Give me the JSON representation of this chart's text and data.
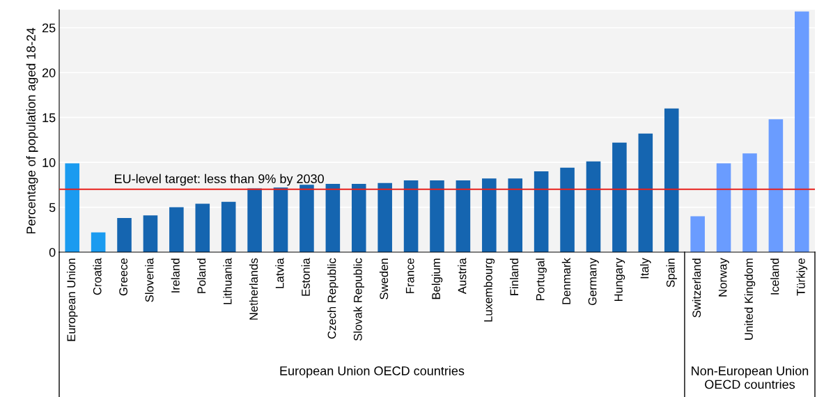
{
  "chart_data": {
    "type": "bar",
    "ylabel": "Percentage of population aged 18-24",
    "categories": [
      "European Union",
      "Croatia",
      "Greece",
      "Slovenia",
      "Ireland",
      "Poland",
      "Lithuania",
      "Netherlands",
      "Latvia",
      "Estonia",
      "Czech Republic",
      "Slovak Republic",
      "Sweden",
      "France",
      "Belgium",
      "Austria",
      "Luxembourg",
      "Finland",
      "Portugal",
      "Denmark",
      "Germany",
      "Hungary",
      "Italy",
      "Spain",
      "Switzerland",
      "Norway",
      "United Kingdom",
      "Iceland",
      "Türkiye"
    ],
    "values": [
      9.9,
      2.2,
      3.8,
      4.1,
      5.0,
      5.4,
      5.6,
      7.1,
      7.2,
      7.5,
      7.6,
      7.6,
      7.7,
      8.0,
      8.0,
      8.0,
      8.2,
      8.2,
      9.0,
      9.4,
      10.1,
      12.2,
      13.2,
      16.0,
      4.0,
      9.9,
      11.0,
      14.8,
      26.8
    ],
    "colors": [
      "#1a9bf0",
      "#1a9bf0",
      "#1565b0",
      "#1565b0",
      "#1565b0",
      "#1565b0",
      "#1565b0",
      "#1565b0",
      "#1565b0",
      "#1565b0",
      "#1565b0",
      "#1565b0",
      "#1565b0",
      "#1565b0",
      "#1565b0",
      "#1565b0",
      "#1565b0",
      "#1565b0",
      "#1565b0",
      "#1565b0",
      "#1565b0",
      "#1565b0",
      "#1565b0",
      "#1565b0",
      "#6a9cff",
      "#6a9cff",
      "#6a9cff",
      "#6a9cff",
      "#6a9cff"
    ],
    "ylim": [
      0,
      27
    ],
    "yticks": [
      0,
      5,
      10,
      15,
      20,
      25
    ],
    "grid": "y",
    "ref_lines": [
      {
        "axis": "y",
        "value": 7,
        "label": "EU-level target: less than 9% by 2030",
        "color": "#e8211c"
      }
    ],
    "annotations": [
      "European Union OECD countries",
      "Non-European Union OECD countries"
    ]
  }
}
